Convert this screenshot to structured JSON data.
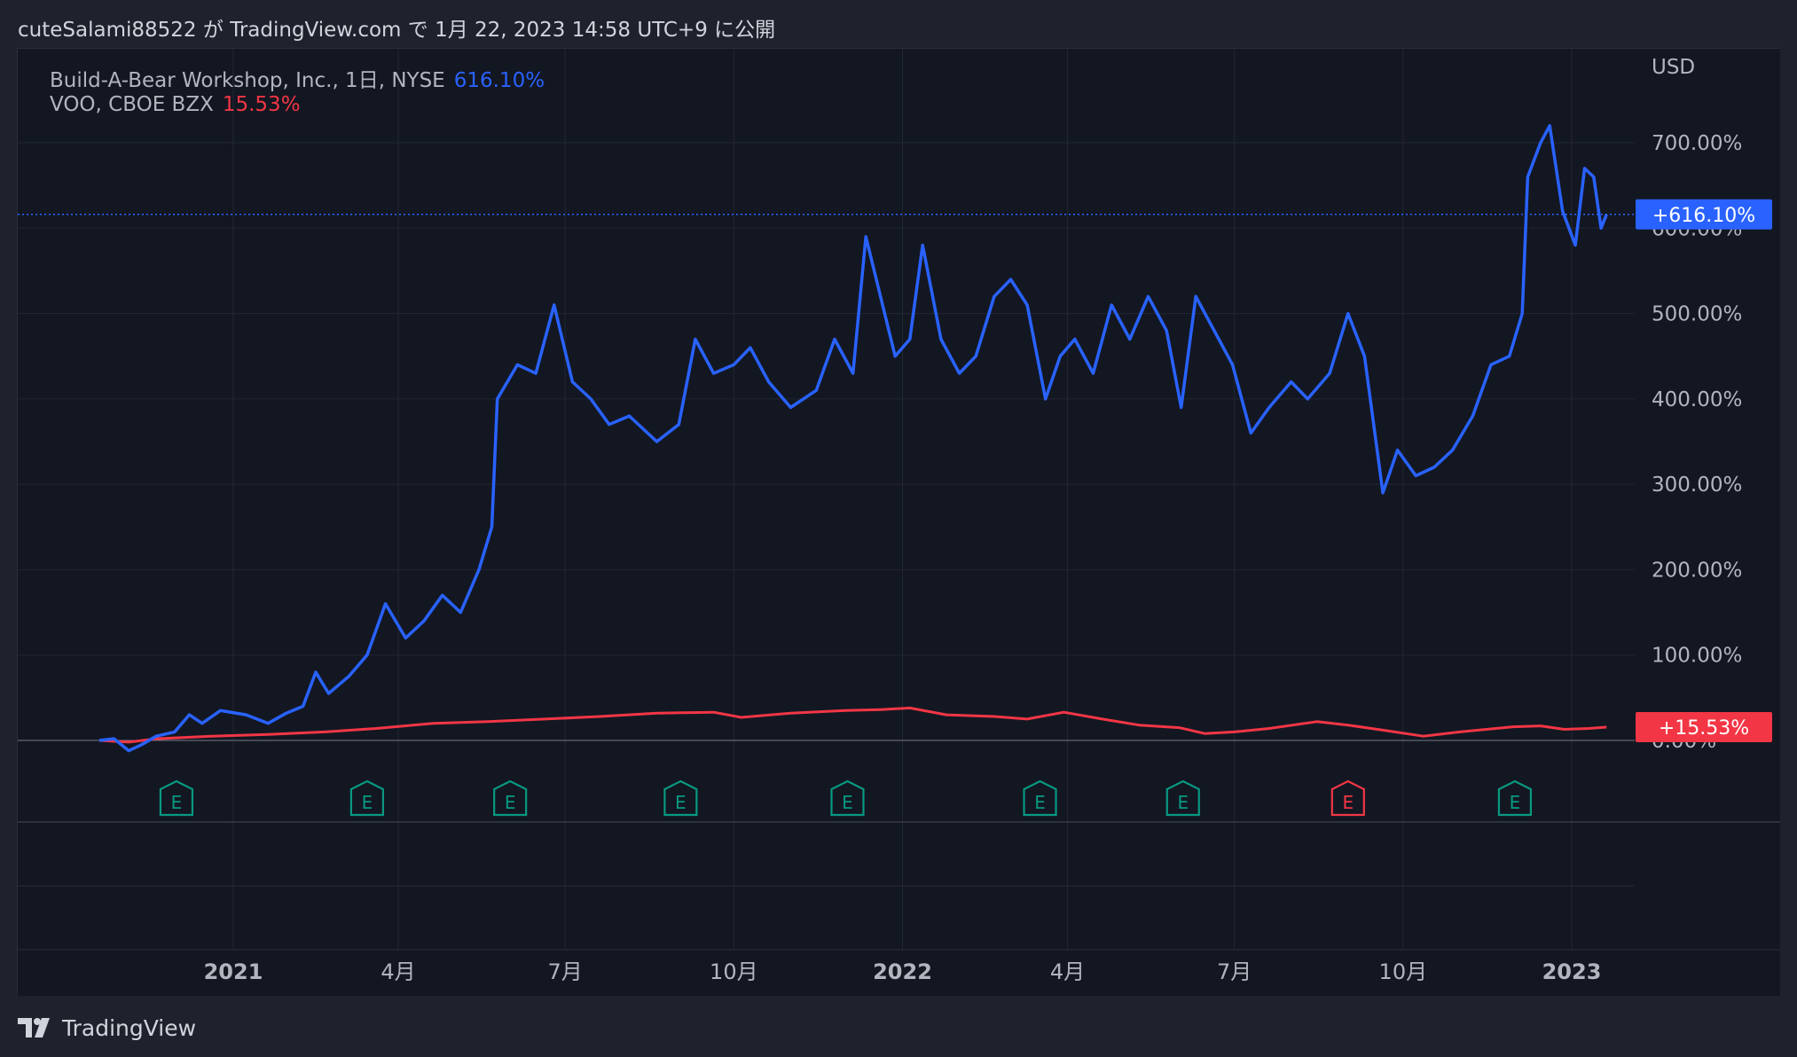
{
  "header": {
    "text": "cuteSalami88522 が TradingView.com で 1月 22, 2023 14:58 UTC+9 に公開"
  },
  "footer": {
    "brand": "TradingView"
  },
  "legend": {
    "series1_label": "Build-A-Bear Workshop, Inc., 1日, NYSE",
    "series1_value": "616.10%",
    "series2_label": "VOO, CBOE BZX",
    "series2_value": "15.53%"
  },
  "colors": {
    "background": "#131722",
    "page": "#1e222d",
    "grid": "#222734",
    "text": "#b2b5be",
    "series1": "#2962ff",
    "series2": "#f23645",
    "earnings_green": "#089981",
    "earnings_red": "#f23645"
  },
  "chart_data": {
    "type": "line",
    "currency_label": "USD",
    "y_unit": "%",
    "ylim": [
      -10,
      750
    ],
    "y_ticks": [
      0,
      100,
      200,
      300,
      400,
      500,
      600,
      700
    ],
    "y_tick_labels": [
      "0.00%",
      "100.00%",
      "200.00%",
      "300.00%",
      "400.00%",
      "500.00%",
      "600.00%",
      "700.00%"
    ],
    "xlim": [
      "2020-10-20",
      "2023-01-26"
    ],
    "x_ticks": [
      {
        "date": "2021-01-01",
        "label": "2021",
        "bold": true
      },
      {
        "date": "2021-04-01",
        "label": "4月",
        "bold": false
      },
      {
        "date": "2021-07-01",
        "label": "7月",
        "bold": false
      },
      {
        "date": "2021-10-01",
        "label": "10月",
        "bold": false
      },
      {
        "date": "2022-01-01",
        "label": "2022",
        "bold": true
      },
      {
        "date": "2022-04-01",
        "label": "4月",
        "bold": false
      },
      {
        "date": "2022-07-01",
        "label": "7月",
        "bold": false
      },
      {
        "date": "2022-10-01",
        "label": "10月",
        "bold": false
      },
      {
        "date": "2023-01-01",
        "label": "2023",
        "bold": true
      }
    ],
    "grid": true,
    "series": [
      {
        "name": "Build-A-Bear Workshop, Inc., 1日, NYSE",
        "color": "#2962ff",
        "last_label": "+616.10%",
        "last_value": 616.1,
        "points": [
          [
            "2020-10-20",
            0
          ],
          [
            "2020-10-28",
            2
          ],
          [
            "2020-11-05",
            -12
          ],
          [
            "2020-11-12",
            -5
          ],
          [
            "2020-11-20",
            5
          ],
          [
            "2020-11-30",
            10
          ],
          [
            "2020-12-08",
            30
          ],
          [
            "2020-12-15",
            20
          ],
          [
            "2020-12-25",
            35
          ],
          [
            "2021-01-08",
            30
          ],
          [
            "2021-01-20",
            20
          ],
          [
            "2021-01-30",
            32
          ],
          [
            "2021-02-08",
            40
          ],
          [
            "2021-02-15",
            80
          ],
          [
            "2021-02-22",
            55
          ],
          [
            "2021-03-05",
            75
          ],
          [
            "2021-03-15",
            100
          ],
          [
            "2021-03-25",
            160
          ],
          [
            "2021-04-05",
            120
          ],
          [
            "2021-04-15",
            140
          ],
          [
            "2021-04-25",
            170
          ],
          [
            "2021-05-05",
            150
          ],
          [
            "2021-05-15",
            200
          ],
          [
            "2021-05-22",
            250
          ],
          [
            "2021-05-25",
            400
          ],
          [
            "2021-06-05",
            440
          ],
          [
            "2021-06-15",
            430
          ],
          [
            "2021-06-25",
            510
          ],
          [
            "2021-07-05",
            420
          ],
          [
            "2021-07-15",
            400
          ],
          [
            "2021-07-25",
            370
          ],
          [
            "2021-08-05",
            380
          ],
          [
            "2021-08-20",
            350
          ],
          [
            "2021-09-01",
            370
          ],
          [
            "2021-09-10",
            470
          ],
          [
            "2021-09-20",
            430
          ],
          [
            "2021-10-01",
            440
          ],
          [
            "2021-10-10",
            460
          ],
          [
            "2021-10-20",
            420
          ],
          [
            "2021-11-01",
            390
          ],
          [
            "2021-11-15",
            410
          ],
          [
            "2021-11-25",
            470
          ],
          [
            "2021-12-05",
            430
          ],
          [
            "2021-12-12",
            590
          ],
          [
            "2021-12-20",
            520
          ],
          [
            "2021-12-28",
            450
          ],
          [
            "2022-01-05",
            470
          ],
          [
            "2022-01-12",
            580
          ],
          [
            "2022-01-22",
            470
          ],
          [
            "2022-02-01",
            430
          ],
          [
            "2022-02-10",
            450
          ],
          [
            "2022-02-20",
            520
          ],
          [
            "2022-03-01",
            540
          ],
          [
            "2022-03-10",
            510
          ],
          [
            "2022-03-20",
            400
          ],
          [
            "2022-03-28",
            450
          ],
          [
            "2022-04-05",
            470
          ],
          [
            "2022-04-15",
            430
          ],
          [
            "2022-04-25",
            510
          ],
          [
            "2022-05-05",
            470
          ],
          [
            "2022-05-15",
            520
          ],
          [
            "2022-05-25",
            480
          ],
          [
            "2022-06-02",
            390
          ],
          [
            "2022-06-10",
            520
          ],
          [
            "2022-06-20",
            480
          ],
          [
            "2022-06-30",
            440
          ],
          [
            "2022-07-10",
            360
          ],
          [
            "2022-07-20",
            390
          ],
          [
            "2022-08-01",
            420
          ],
          [
            "2022-08-10",
            400
          ],
          [
            "2022-08-22",
            430
          ],
          [
            "2022-09-01",
            500
          ],
          [
            "2022-09-10",
            450
          ],
          [
            "2022-09-20",
            290
          ],
          [
            "2022-09-28",
            340
          ],
          [
            "2022-10-08",
            310
          ],
          [
            "2022-10-18",
            320
          ],
          [
            "2022-10-28",
            340
          ],
          [
            "2022-11-08",
            380
          ],
          [
            "2022-11-18",
            440
          ],
          [
            "2022-11-28",
            450
          ],
          [
            "2022-12-05",
            500
          ],
          [
            "2022-12-08",
            660
          ],
          [
            "2022-12-15",
            700
          ],
          [
            "2022-12-20",
            720
          ],
          [
            "2022-12-27",
            620
          ],
          [
            "2023-01-03",
            580
          ],
          [
            "2023-01-08",
            670
          ],
          [
            "2023-01-13",
            660
          ],
          [
            "2023-01-17",
            600
          ],
          [
            "2023-01-20",
            616.1
          ]
        ]
      },
      {
        "name": "VOO, CBOE BZX",
        "color": "#f23645",
        "last_label": "+15.53%",
        "last_value": 15.53,
        "points": [
          [
            "2020-10-20",
            0
          ],
          [
            "2020-11-05",
            -2
          ],
          [
            "2020-11-20",
            2
          ],
          [
            "2020-12-20",
            5
          ],
          [
            "2021-01-20",
            7
          ],
          [
            "2021-02-20",
            10
          ],
          [
            "2021-03-20",
            14
          ],
          [
            "2021-04-20",
            20
          ],
          [
            "2021-05-20",
            22
          ],
          [
            "2021-06-20",
            25
          ],
          [
            "2021-07-20",
            28
          ],
          [
            "2021-08-20",
            32
          ],
          [
            "2021-09-20",
            33
          ],
          [
            "2021-10-05",
            27
          ],
          [
            "2021-11-01",
            32
          ],
          [
            "2021-12-01",
            35
          ],
          [
            "2021-12-20",
            36
          ],
          [
            "2022-01-05",
            38
          ],
          [
            "2022-01-25",
            30
          ],
          [
            "2022-02-20",
            28
          ],
          [
            "2022-03-10",
            25
          ],
          [
            "2022-03-30",
            33
          ],
          [
            "2022-04-20",
            25
          ],
          [
            "2022-05-10",
            18
          ],
          [
            "2022-06-01",
            15
          ],
          [
            "2022-06-15",
            8
          ],
          [
            "2022-07-01",
            10
          ],
          [
            "2022-07-20",
            14
          ],
          [
            "2022-08-15",
            22
          ],
          [
            "2022-09-01",
            18
          ],
          [
            "2022-09-20",
            12
          ],
          [
            "2022-10-12",
            5
          ],
          [
            "2022-11-01",
            10
          ],
          [
            "2022-11-30",
            16
          ],
          [
            "2022-12-15",
            17
          ],
          [
            "2022-12-28",
            13
          ],
          [
            "2023-01-10",
            14
          ],
          [
            "2023-01-20",
            15.53
          ]
        ]
      }
    ],
    "earnings_markers": [
      {
        "date": "2020-12-01",
        "label": "E",
        "color": "#089981"
      },
      {
        "date": "2021-03-15",
        "label": "E",
        "color": "#089981"
      },
      {
        "date": "2021-06-01",
        "label": "E",
        "color": "#089981"
      },
      {
        "date": "2021-09-02",
        "label": "E",
        "color": "#089981"
      },
      {
        "date": "2021-12-02",
        "label": "E",
        "color": "#089981"
      },
      {
        "date": "2022-03-17",
        "label": "E",
        "color": "#089981"
      },
      {
        "date": "2022-06-03",
        "label": "E",
        "color": "#089981"
      },
      {
        "date": "2022-09-01",
        "label": "E",
        "color": "#f23645"
      },
      {
        "date": "2022-12-01",
        "label": "E",
        "color": "#089981"
      }
    ]
  }
}
